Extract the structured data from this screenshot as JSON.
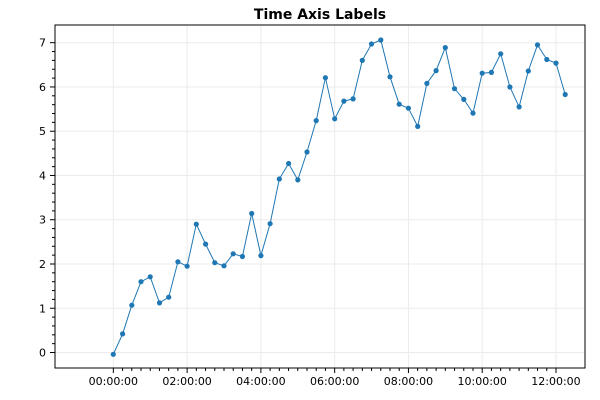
{
  "chart_data": {
    "type": "line",
    "title": "Time Axis Labels",
    "xlabel": "",
    "ylabel": "",
    "x_ticks": [
      {
        "value": 0,
        "label": "00:00:00"
      },
      {
        "value": 120,
        "label": "02:00:00"
      },
      {
        "value": 240,
        "label": "04:00:00"
      },
      {
        "value": 360,
        "label": "06:00:00"
      },
      {
        "value": 480,
        "label": "08:00:00"
      },
      {
        "value": 600,
        "label": "10:00:00"
      },
      {
        "value": 720,
        "label": "12:00:00"
      }
    ],
    "y_ticks": [
      0,
      1,
      2,
      3,
      4,
      5,
      6,
      7
    ],
    "xlim": [
      -94.9,
      767.2
    ],
    "ylim": [
      -0.35,
      7.4
    ],
    "grid": true,
    "legend": "none",
    "series": [
      {
        "color": "#1f77b4",
        "x_minutes": [
          0,
          15,
          30,
          45,
          60,
          75,
          90,
          105,
          120,
          135,
          150,
          165,
          180,
          195,
          210,
          225,
          240,
          255,
          270,
          285,
          300,
          315,
          330,
          345,
          360,
          375,
          390,
          405,
          420,
          435,
          450,
          465,
          480,
          495,
          510,
          525,
          540,
          555,
          570,
          585,
          600,
          615,
          630,
          645,
          660,
          675,
          690,
          705,
          720,
          735
        ],
        "y": [
          -0.04,
          0.42,
          1.07,
          1.6,
          1.71,
          1.12,
          1.25,
          2.05,
          1.95,
          2.9,
          2.45,
          2.03,
          1.96,
          2.23,
          2.17,
          3.14,
          2.19,
          2.91,
          3.92,
          4.27,
          3.9,
          4.53,
          5.24,
          6.21,
          5.28,
          5.68,
          5.73,
          6.6,
          6.97,
          7.06,
          6.23,
          5.61,
          5.52,
          5.11,
          6.08,
          6.37,
          6.89,
          5.96,
          5.72,
          5.41,
          6.31,
          6.33,
          6.75,
          6.0,
          5.55,
          6.36,
          6.95,
          6.62,
          6.54,
          5.83
        ]
      }
    ]
  }
}
